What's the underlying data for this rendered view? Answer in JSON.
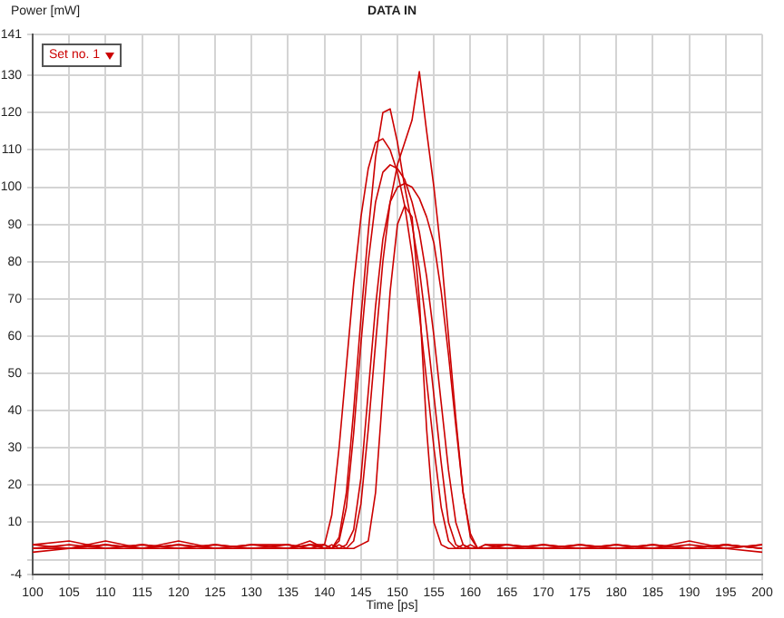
{
  "chart_data": {
    "type": "line",
    "title": "DATA IN",
    "xlabel": "Time [ps]",
    "ylabel": "Power [mW]",
    "annotations": [
      "Set no. 1"
    ],
    "x": [
      100,
      105,
      110,
      115,
      120,
      125,
      130,
      135,
      138,
      140,
      141,
      142,
      143,
      144,
      145,
      146,
      147,
      148,
      149,
      150,
      151,
      152,
      153,
      154,
      155,
      156,
      157,
      158,
      159,
      160,
      161,
      162,
      165,
      170,
      175,
      180,
      185,
      190,
      195,
      200
    ],
    "series": [
      {
        "color": "#cc0000",
        "values": [
          3,
          4,
          3,
          3,
          4,
          3,
          3,
          4,
          3,
          4,
          12,
          30,
          52,
          74,
          92,
          105,
          112,
          113,
          110,
          104,
          95,
          82,
          66,
          48,
          30,
          14,
          5,
          3,
          3,
          4,
          3,
          3,
          3,
          4,
          3,
          3,
          4,
          3,
          4,
          3
        ]
      },
      {
        "color": "#cc0000",
        "values": [
          4,
          3,
          5,
          3,
          3,
          4,
          3,
          3,
          4,
          3,
          3,
          6,
          18,
          40,
          65,
          88,
          108,
          120,
          121,
          112,
          100,
          90,
          78,
          62,
          44,
          26,
          10,
          4,
          3,
          3,
          3,
          4,
          4,
          3,
          3,
          4,
          3,
          5,
          3,
          4
        ]
      },
      {
        "color": "#cc0000",
        "values": [
          2,
          3,
          4,
          3,
          5,
          3,
          4,
          3,
          5,
          3,
          4,
          3,
          3,
          5,
          15,
          35,
          58,
          80,
          96,
          106,
          112,
          118,
          131,
          115,
          100,
          82,
          60,
          38,
          18,
          6,
          3,
          3,
          3,
          3,
          4,
          3,
          3,
          3,
          4,
          3
        ]
      },
      {
        "color": "#cc0000",
        "values": [
          3,
          3,
          3,
          4,
          3,
          4,
          3,
          3,
          3,
          4,
          3,
          4,
          3,
          3,
          4,
          5,
          18,
          45,
          72,
          90,
          95,
          92,
          70,
          35,
          10,
          4,
          3,
          3,
          4,
          3,
          3,
          3,
          4,
          3,
          3,
          3,
          4,
          3,
          3,
          2
        ]
      },
      {
        "color": "#cc0000",
        "values": [
          4,
          5,
          3,
          4,
          3,
          3,
          4,
          4,
          3,
          3,
          3,
          3,
          4,
          8,
          22,
          45,
          68,
          86,
          96,
          100,
          101,
          100,
          97,
          92,
          85,
          72,
          55,
          36,
          18,
          7,
          3,
          3,
          3,
          4,
          3,
          4,
          3,
          3,
          4,
          3
        ]
      },
      {
        "color": "#cc0000",
        "values": [
          3,
          3,
          4,
          3,
          4,
          3,
          3,
          3,
          4,
          4,
          3,
          5,
          14,
          34,
          58,
          80,
          96,
          104,
          106,
          105,
          102,
          96,
          88,
          76,
          60,
          42,
          24,
          10,
          4,
          3,
          3,
          4,
          3,
          3,
          4,
          3,
          3,
          4,
          3,
          4
        ]
      }
    ],
    "xlim": [
      100,
      200
    ],
    "xticks": [
      100,
      105,
      110,
      115,
      120,
      125,
      130,
      135,
      140,
      145,
      150,
      155,
      160,
      165,
      170,
      175,
      180,
      185,
      190,
      195,
      200
    ],
    "ylim": [
      -4,
      141
    ],
    "yticks": [
      -4,
      {
        "value": 0,
        "label": null
      },
      10,
      20,
      30,
      40,
      50,
      60,
      70,
      80,
      90,
      100,
      110,
      120,
      130,
      141
    ],
    "grid": true,
    "legend": false,
    "marker": "none",
    "line_style": "solid"
  }
}
